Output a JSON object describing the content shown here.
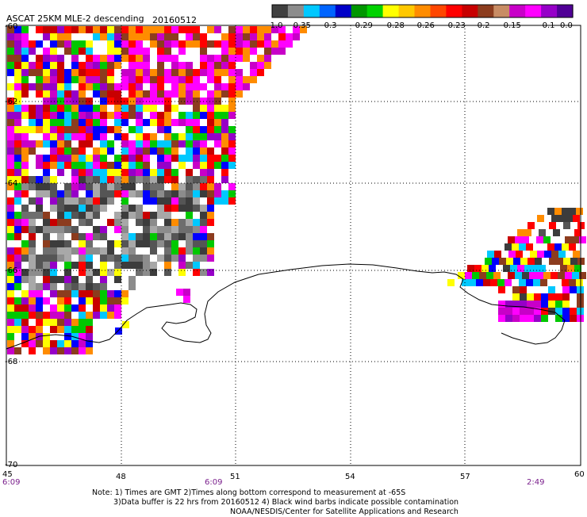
{
  "header": {
    "title": "ASCAT 25KM MLE-2 descending",
    "date": "20160512"
  },
  "colorbar": {
    "colors": [
      "#404040",
      "#8c8c8c",
      "#00c8ff",
      "#0064ff",
      "#0000c8",
      "#009600",
      "#00d200",
      "#ffff00",
      "#ffc800",
      "#ff8c00",
      "#ff4600",
      "#ff0000",
      "#c80000",
      "#8c3c1e",
      "#c88c64",
      "#c800c8",
      "#ff00ff",
      "#9600c8",
      "#500096"
    ],
    "labels": [
      "-1.0",
      "-0.35",
      "-0.3",
      "-0.29",
      "-0.28",
      "-0.26",
      "-0.23",
      "-0.2",
      "-0.15",
      "-0.1",
      "0.0"
    ]
  },
  "map": {
    "lon_range": [
      45,
      60
    ],
    "lat_range": [
      -70,
      -60
    ],
    "lon_ticks": [
      "45",
      "48",
      "51",
      "54",
      "57",
      "60"
    ],
    "lat_ticks": [
      "-60",
      "-62",
      "-64",
      "-66",
      "-68",
      "-70"
    ],
    "coastline_color": "#000000",
    "grid_color": "#000000"
  },
  "time_labels": [
    "6:09",
    "6:09",
    "2:49"
  ],
  "notes": [
    "Note: 1) Times are GMT 2)Times along bottom correspond to measurement at -65S",
    "3)Data buffer is 22 hrs from 20160512 4) Black wind barbs indicate possible contamination",
    "NOAA/NESDIS/Center for Satellite Applications and Research"
  ]
}
